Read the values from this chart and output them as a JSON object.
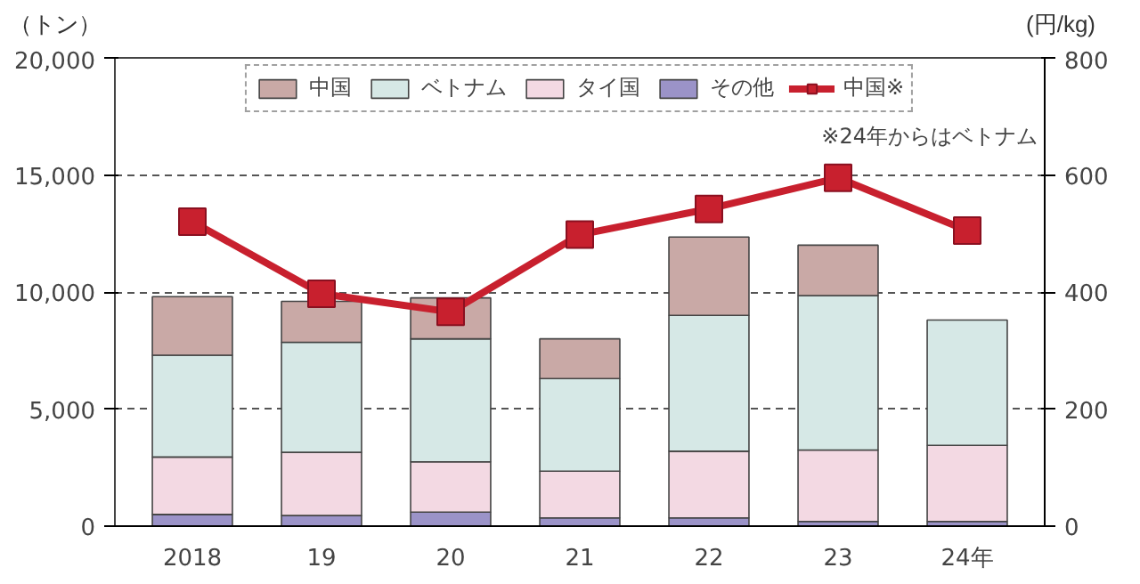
{
  "chart_data": {
    "type": "bar",
    "stacked": true,
    "categories": [
      "2018",
      "19",
      "20",
      "21",
      "22",
      "23",
      "24年"
    ],
    "series": [
      {
        "name": "その他",
        "color": "#9b93c8",
        "values": [
          500,
          450,
          600,
          350,
          350,
          200,
          200
        ]
      },
      {
        "name": "タイ国",
        "color": "#f3d9e3",
        "values": [
          2450,
          2700,
          2150,
          2000,
          2850,
          3050,
          3250
        ]
      },
      {
        "name": "ベトナム",
        "color": "#d6e8e6",
        "values": [
          4350,
          4700,
          5250,
          3950,
          5800,
          6600,
          5350
        ]
      },
      {
        "name": "中国",
        "color": "#c9a9a6",
        "values": [
          2500,
          1750,
          1750,
          1700,
          3350,
          2150,
          null
        ]
      },
      {
        "name": "中国※",
        "type": "line",
        "axis": "y2",
        "color": "#c8202e",
        "marker": "square",
        "values": [
          520,
          397,
          366,
          498,
          542,
          595,
          505
        ]
      }
    ],
    "ylabel": "（トン）",
    "y2label": "(円/kg)",
    "ylim": [
      0,
      20000
    ],
    "yticks": [
      0,
      {
        "value": 5000,
        "label": "5,000"
      },
      {
        "value": 10000,
        "label": "10,000"
      },
      {
        "value": 15000,
        "label": "15,000"
      },
      {
        "value": 20000,
        "label": "20,000"
      }
    ],
    "y2lim": [
      0,
      800
    ],
    "y2ticks": [
      0,
      200,
      400,
      600,
      800
    ],
    "grid": "y",
    "legend": "top",
    "annotations": [
      "※24年からはベトナム"
    ]
  }
}
